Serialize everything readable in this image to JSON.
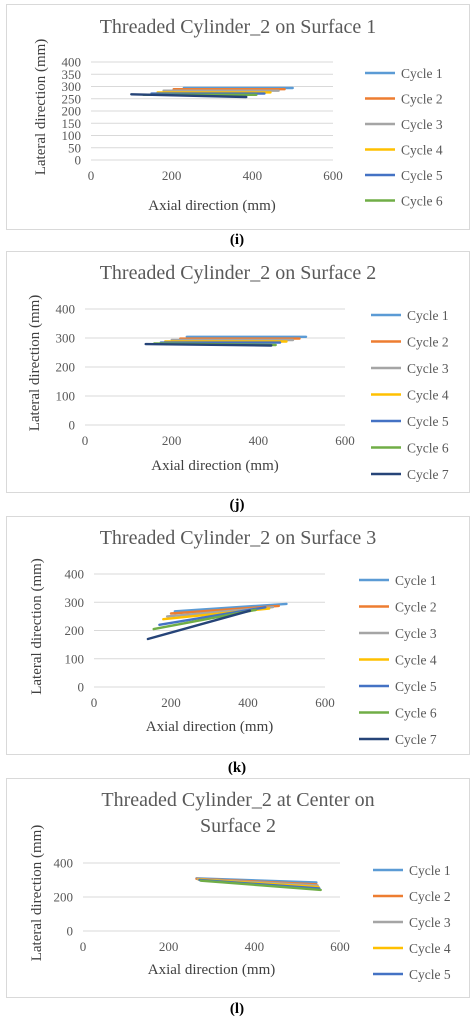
{
  "captions": [
    "(i)",
    "(j)",
    "(k)",
    "(l)"
  ],
  "legend_colors": [
    "#5B9BD5",
    "#ED7D31",
    "#A5A5A5",
    "#FFC000",
    "#4472C4",
    "#70AD47",
    "#264478"
  ],
  "chart_data": [
    {
      "type": "line",
      "title": "Threaded Cylinder_2 on Surface 1",
      "xlabel": "Axial direction (mm)",
      "ylabel": "Lateral direction (mm)",
      "xlim": [
        0,
        600
      ],
      "ylim": [
        0,
        400
      ],
      "xticks": [
        0,
        200,
        400,
        600
      ],
      "yticks": [
        0,
        50,
        100,
        150,
        200,
        250,
        300,
        350,
        400
      ],
      "grid": "horizontal",
      "legend": "right",
      "series": [
        {
          "name": "Cycle 1",
          "x": [
            230,
            500
          ],
          "y": [
            294,
            294
          ]
        },
        {
          "name": "Cycle 2",
          "x": [
            205,
            480
          ],
          "y": [
            289,
            289
          ]
        },
        {
          "name": "Cycle 3",
          "x": [
            180,
            465
          ],
          "y": [
            283,
            283
          ]
        },
        {
          "name": "Cycle 4",
          "x": [
            165,
            445
          ],
          "y": [
            276,
            276
          ]
        },
        {
          "name": "Cycle 5",
          "x": [
            150,
            430
          ],
          "y": [
            271,
            271
          ]
        },
        {
          "name": "Cycle 6",
          "x": [
            130,
            410
          ],
          "y": [
            266,
            266
          ]
        },
        {
          "name": "",
          "x": [
            100,
            385
          ],
          "y": [
            268,
            257
          ]
        }
      ]
    },
    {
      "type": "line",
      "title": "Threaded Cylinder_2 on Surface 2",
      "xlabel": "Axial direction (mm)",
      "ylabel": "Lateral direction (mm)",
      "xlim": [
        0,
        600
      ],
      "ylim": [
        0,
        400
      ],
      "xticks": [
        0,
        200,
        400,
        600
      ],
      "yticks": [
        0,
        100,
        200,
        300,
        400
      ],
      "grid": "horizontal",
      "legend": "right",
      "series": [
        {
          "name": "Cycle 1",
          "x": [
            235,
            510
          ],
          "y": [
            304,
            304
          ]
        },
        {
          "name": "Cycle 2",
          "x": [
            220,
            495
          ],
          "y": [
            298,
            298
          ]
        },
        {
          "name": "Cycle 3",
          "x": [
            200,
            480
          ],
          "y": [
            293,
            293
          ]
        },
        {
          "name": "Cycle 4",
          "x": [
            185,
            465
          ],
          "y": [
            288,
            288
          ]
        },
        {
          "name": "Cycle 5",
          "x": [
            175,
            450
          ],
          "y": [
            284,
            284
          ]
        },
        {
          "name": "Cycle 6",
          "x": [
            160,
            440
          ],
          "y": [
            281,
            276
          ]
        },
        {
          "name": "Cycle 7",
          "x": [
            140,
            430
          ],
          "y": [
            279,
            274
          ]
        }
      ]
    },
    {
      "type": "line",
      "title": "Threaded Cylinder_2 on Surface 3",
      "xlabel": "Axial direction (mm)",
      "ylabel": "Lateral direction (mm)",
      "xlim": [
        0,
        600
      ],
      "ylim": [
        0,
        400
      ],
      "xticks": [
        0,
        200,
        400,
        600
      ],
      "yticks": [
        0,
        100,
        200,
        300,
        400
      ],
      "grid": "horizontal",
      "legend": "right",
      "series": [
        {
          "name": "Cycle 1",
          "x": [
            210,
            500
          ],
          "y": [
            268,
            294
          ]
        },
        {
          "name": "Cycle 2",
          "x": [
            200,
            480
          ],
          "y": [
            260,
            287
          ]
        },
        {
          "name": "Cycle 3",
          "x": [
            190,
            465
          ],
          "y": [
            250,
            283
          ]
        },
        {
          "name": "Cycle 4",
          "x": [
            180,
            455
          ],
          "y": [
            240,
            278
          ]
        },
        {
          "name": "Cycle 5",
          "x": [
            170,
            445
          ],
          "y": [
            220,
            282
          ]
        },
        {
          "name": "Cycle 6",
          "x": [
            155,
            420
          ],
          "y": [
            205,
            273
          ]
        },
        {
          "name": "Cycle 7",
          "x": [
            140,
            405
          ],
          "y": [
            170,
            270
          ]
        }
      ]
    },
    {
      "type": "line",
      "title": "Threaded Cylinder_2 at Center on Surface 2",
      "xlabel": "Axial direction (mm)",
      "ylabel": "Lateral direction (mm)",
      "xlim": [
        0,
        600
      ],
      "ylim": [
        0,
        400
      ],
      "xticks": [
        0,
        200,
        400,
        600
      ],
      "yticks": [
        0,
        200,
        400
      ],
      "grid": "horizontal",
      "legend": "right",
      "series": [
        {
          "name": "Cycle 1",
          "x": [
            265,
            545
          ],
          "y": [
            310,
            285
          ]
        },
        {
          "name": "Cycle 2",
          "x": [
            265,
            545
          ],
          "y": [
            307,
            275
          ]
        },
        {
          "name": "Cycle 3",
          "x": [
            268,
            548
          ],
          "y": [
            305,
            268
          ]
        },
        {
          "name": "Cycle 4",
          "x": [
            270,
            550
          ],
          "y": [
            303,
            258
          ]
        },
        {
          "name": "Cycle 5",
          "x": [
            272,
            552
          ],
          "y": [
            300,
            250
          ]
        },
        {
          "name": "",
          "x": [
            275,
            555
          ],
          "y": [
            296,
            242
          ]
        }
      ]
    }
  ]
}
